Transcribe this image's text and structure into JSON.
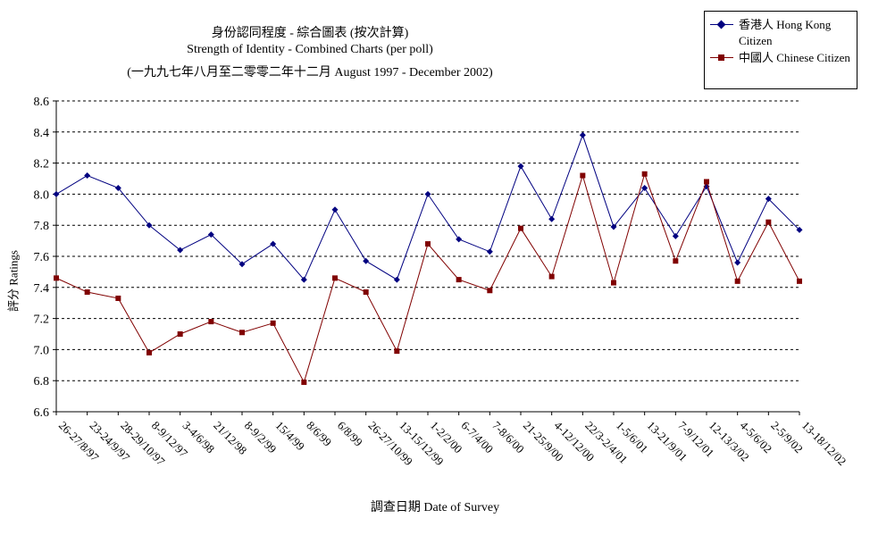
{
  "chart_data": {
    "type": "line",
    "title": "身份認同程度 - 綜合圖表 (按次計算)",
    "subtitle": "Strength of Identity - Combined Charts (per poll)",
    "subtitle2": "(一九九七年八月至二零零二年十二月 August 1997 - December 2002)",
    "xlabel": "調查日期 Date of Survey",
    "ylabel": "評分 Ratings",
    "ylim": [
      6.6,
      8.6
    ],
    "yticks": [
      "6.6",
      "6.8",
      "7.0",
      "7.2",
      "7.4",
      "7.6",
      "7.8",
      "8.0",
      "8.2",
      "8.4",
      "8.6"
    ],
    "grid": true,
    "legend_position": "top-right",
    "categories": [
      "26-27/8/97",
      "23-24/9/97",
      "28-29/10/97",
      "8-9/12/97",
      "3-4/6/98",
      "21/12/98",
      "8-9/2/99",
      "15/4/99",
      "8/6/99",
      "6/8/99",
      "26-27/10/99",
      "13-15/12/99",
      "1-2/2/00",
      "6-7/4/00",
      "7-8/6/00",
      "21-25/9/00",
      "4-12/12/00",
      "22/3-2/4/01",
      "1-5/6/01",
      "13-21/9/01",
      "7-9/12/01",
      "12-13/3/02",
      "4-5/6/02",
      "2-5/9/02",
      "13-18/12/02"
    ],
    "series": [
      {
        "name": "香港人 Hong Kong Citizen",
        "color": "#000080",
        "marker": "diamond",
        "values": [
          8.0,
          8.12,
          8.04,
          7.8,
          7.64,
          7.74,
          7.55,
          7.68,
          7.45,
          7.9,
          7.57,
          7.45,
          8.0,
          7.71,
          7.63,
          8.18,
          7.84,
          8.38,
          7.79,
          8.04,
          7.73,
          8.05,
          7.56,
          7.97,
          7.77
        ]
      },
      {
        "name": "中國人 Chinese Citizen",
        "color": "#800000",
        "marker": "square",
        "values": [
          7.46,
          7.37,
          7.33,
          6.98,
          7.1,
          7.18,
          7.11,
          7.17,
          6.79,
          7.46,
          7.37,
          6.99,
          7.68,
          7.45,
          7.38,
          7.78,
          7.47,
          8.12,
          7.43,
          8.13,
          7.57,
          8.08,
          7.44,
          7.82,
          7.44
        ]
      }
    ]
  }
}
